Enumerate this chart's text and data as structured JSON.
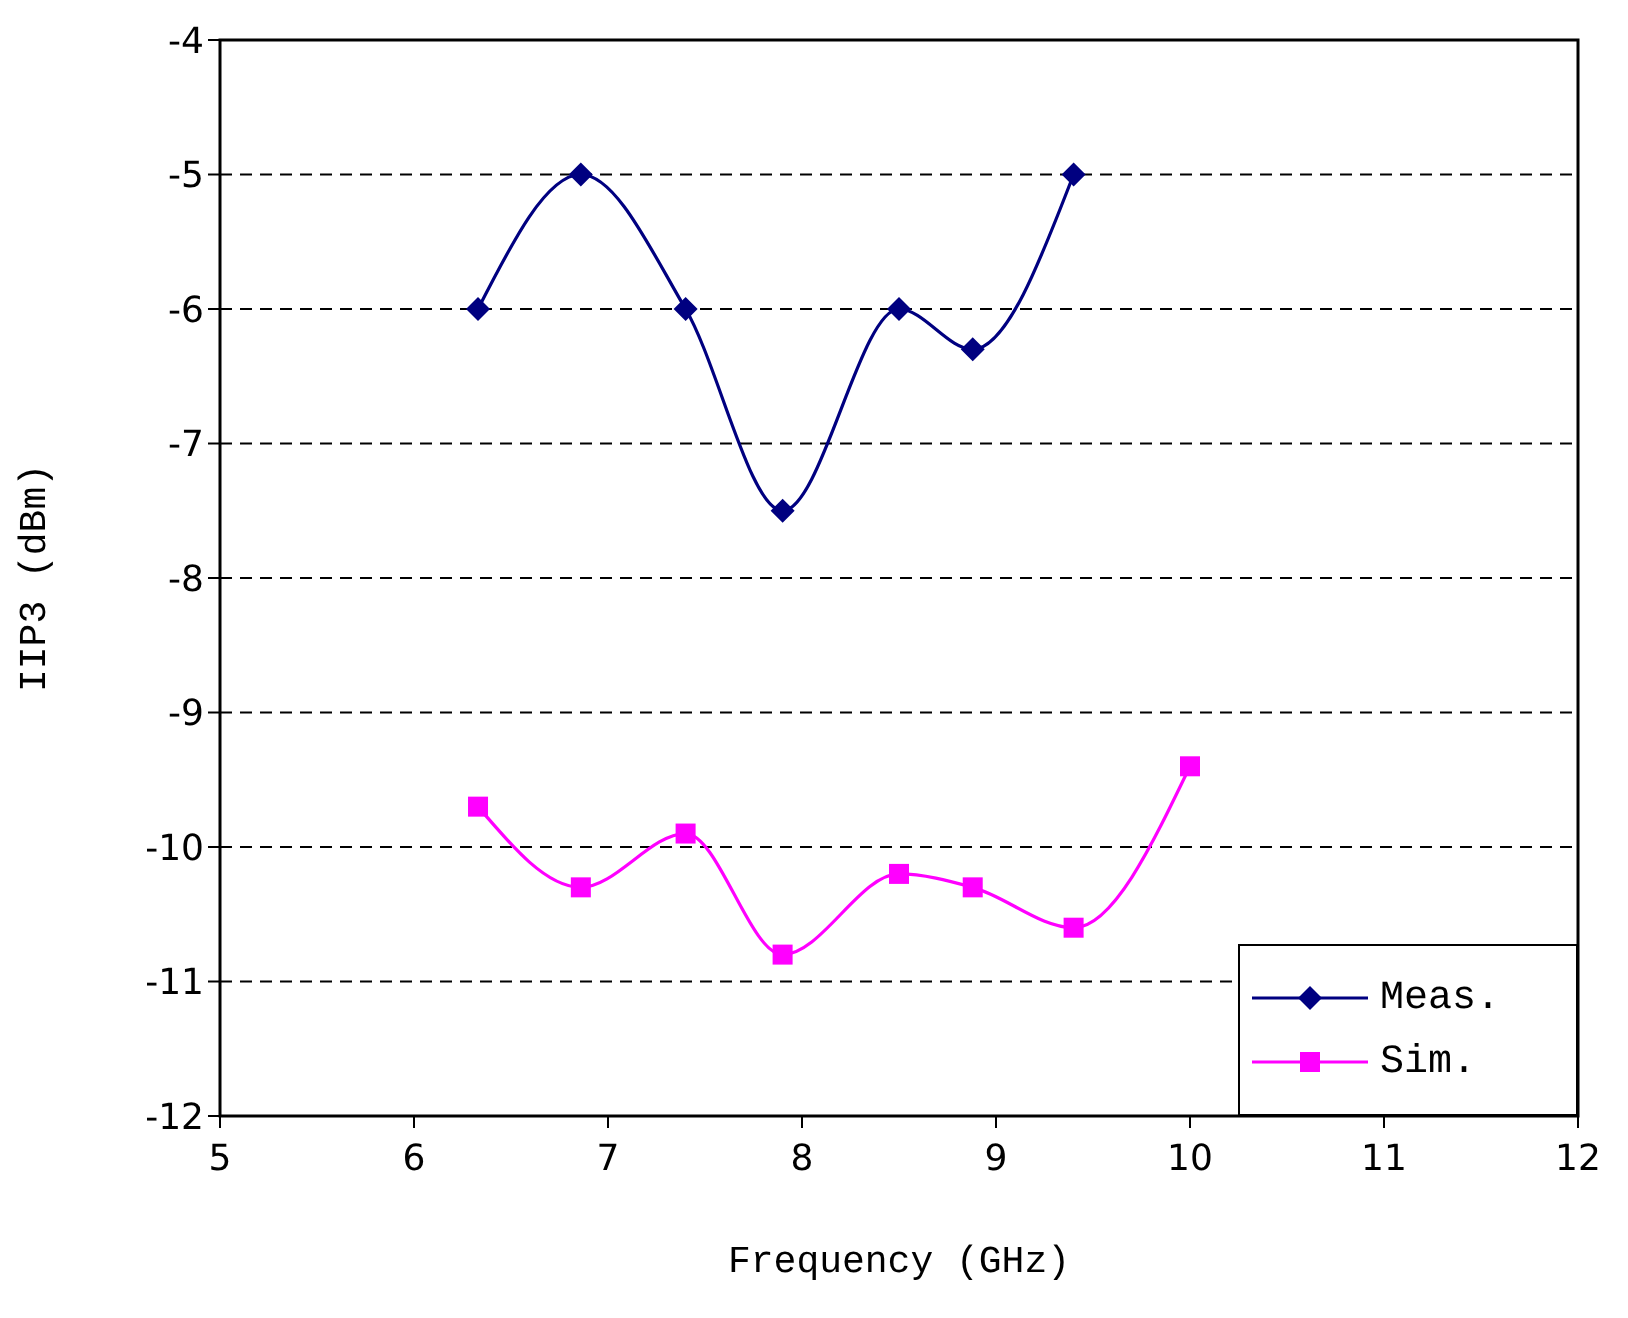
{
  "chart_data": {
    "type": "line",
    "xlabel": "Frequency (GHz)",
    "ylabel": "IIP3 (dBm)",
    "x": [
      6.33,
      6.86,
      7.4,
      7.9,
      8.5,
      8.88,
      9.4,
      10
    ],
    "series": [
      {
        "name": "Meas.",
        "color": "#000080",
        "marker": "diamond",
        "values": [
          -6,
          -5,
          -6,
          -7.5,
          -6,
          -6.3,
          -5,
          null
        ]
      },
      {
        "name": "Sim.",
        "color": "#ff00ff",
        "marker": "square",
        "values": [
          -9.7,
          -10.3,
          -9.9,
          -10.8,
          -10.2,
          -10.3,
          -10.6,
          -9.4
        ]
      }
    ],
    "xlim": [
      5,
      12
    ],
    "xticks": [
      5,
      6,
      7,
      8,
      9,
      10,
      11,
      12
    ],
    "ylim": [
      -12,
      -4
    ],
    "yticks": [
      -12,
      -11,
      -10,
      -9,
      -8,
      -7,
      -6,
      -5,
      -4
    ],
    "grid": "y",
    "legend": "bottom right"
  }
}
